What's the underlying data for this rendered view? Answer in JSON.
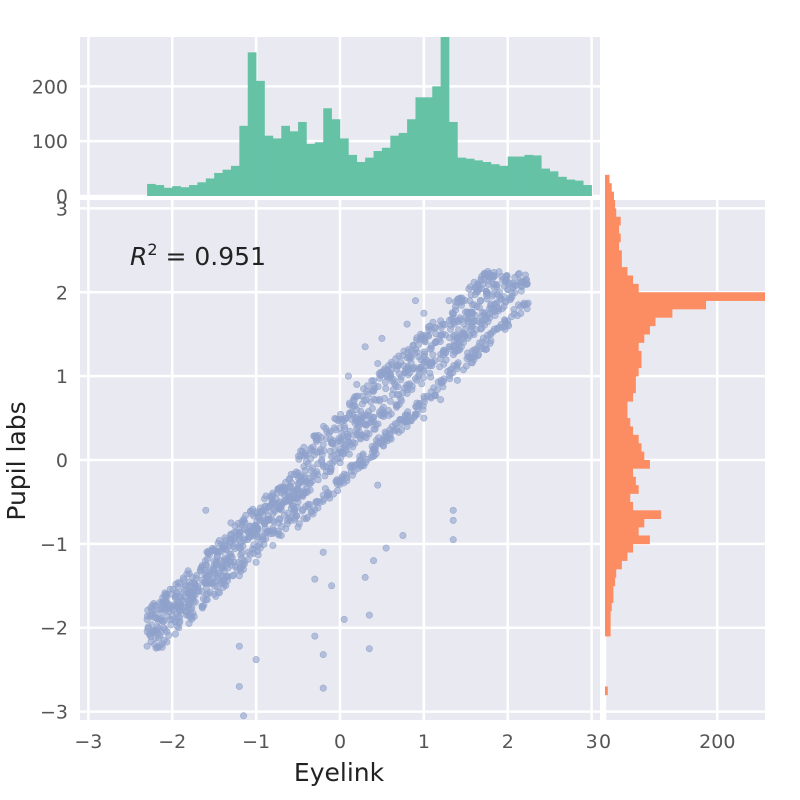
{
  "chart_data": {
    "type": "scatter",
    "title": "",
    "xlabel": "Eyelink",
    "ylabel": "Pupil labs",
    "xlim": [
      -3.1,
      3.1
    ],
    "ylim": [
      -3.1,
      3.1
    ],
    "xticks": [
      "−3",
      "−2",
      "−1",
      "0",
      "1",
      "2",
      "3"
    ],
    "yticks": [
      "−3",
      "−2",
      "−1",
      "0",
      "1",
      "2",
      "3"
    ],
    "grid": true,
    "annotation": {
      "prefix": "R",
      "sup": "2",
      "suffix": " = 0.951",
      "value": 0.951
    },
    "scatter": {
      "color": "#8fa1cb",
      "slope": 0.95,
      "intercept": 0.05,
      "points": [
        [
          -2.3,
          -2.22
        ],
        [
          -2.2,
          -2.12
        ],
        [
          -2.1,
          -2.0
        ],
        [
          -2.0,
          -1.9
        ],
        [
          -1.9,
          -1.8
        ],
        [
          -1.8,
          -1.68
        ],
        [
          -1.7,
          -1.56
        ],
        [
          -1.6,
          -1.47
        ],
        [
          -1.5,
          -1.36
        ],
        [
          -1.4,
          -1.26
        ],
        [
          -1.3,
          -1.15
        ],
        [
          -1.2,
          -1.05
        ],
        [
          -1.1,
          -0.95
        ],
        [
          -1.0,
          -0.86
        ],
        [
          -0.9,
          -0.75
        ],
        [
          -0.8,
          -0.64
        ],
        [
          -0.7,
          -0.55
        ],
        [
          -0.6,
          -0.44
        ],
        [
          -0.5,
          -0.35
        ],
        [
          -0.4,
          -0.26
        ],
        [
          -0.3,
          -0.16
        ],
        [
          -0.2,
          -0.06
        ],
        [
          -0.1,
          0.04
        ],
        [
          0.0,
          0.13
        ],
        [
          0.1,
          0.22
        ],
        [
          0.2,
          0.32
        ],
        [
          0.3,
          0.42
        ],
        [
          0.4,
          0.51
        ],
        [
          0.5,
          0.6
        ],
        [
          0.6,
          0.7
        ],
        [
          0.7,
          0.78
        ],
        [
          0.8,
          0.87
        ],
        [
          0.9,
          0.97
        ],
        [
          1.0,
          1.06
        ],
        [
          1.1,
          1.16
        ],
        [
          1.2,
          1.26
        ],
        [
          1.3,
          1.35
        ],
        [
          1.4,
          1.46
        ],
        [
          1.5,
          1.56
        ],
        [
          1.6,
          1.66
        ],
        [
          1.7,
          1.76
        ],
        [
          1.8,
          1.86
        ],
        [
          1.9,
          1.95
        ],
        [
          2.0,
          2.03
        ],
        [
          2.1,
          2.08
        ],
        [
          2.2,
          2.12
        ],
        [
          -2.0,
          -1.75
        ],
        [
          -1.8,
          -1.5
        ],
        [
          -1.6,
          -1.25
        ],
        [
          -1.4,
          -1.05
        ],
        [
          -1.2,
          -0.82
        ],
        [
          -1.0,
          -0.62
        ],
        [
          -0.8,
          -0.42
        ],
        [
          -0.6,
          -0.22
        ],
        [
          -0.4,
          -0.02
        ],
        [
          -0.2,
          0.18
        ],
        [
          0.0,
          0.38
        ],
        [
          0.2,
          0.6
        ],
        [
          0.4,
          0.82
        ],
        [
          0.6,
          1.02
        ],
        [
          0.8,
          1.22
        ],
        [
          1.0,
          1.44
        ],
        [
          1.2,
          1.66
        ],
        [
          1.4,
          1.88
        ],
        [
          1.6,
          2.12
        ],
        [
          1.8,
          2.2
        ],
        [
          -1.8,
          -1.95
        ],
        [
          -1.5,
          -1.6
        ],
        [
          -1.2,
          -1.38
        ],
        [
          -1.0,
          -1.22
        ],
        [
          -0.8,
          -1.02
        ],
        [
          -0.5,
          -0.8
        ],
        [
          -0.2,
          -0.42
        ],
        [
          0.0,
          -0.25
        ],
        [
          0.2,
          -0.05
        ],
        [
          0.4,
          0.12
        ],
        [
          0.6,
          0.3
        ],
        [
          0.8,
          0.4
        ],
        [
          1.0,
          0.5
        ],
        [
          1.2,
          0.72
        ],
        [
          1.4,
          0.95
        ],
        [
          1.6,
          1.2
        ],
        [
          1.8,
          1.42
        ],
        [
          2.0,
          1.62
        ],
        [
          2.2,
          1.85
        ],
        [
          0.3,
          1.35
        ],
        [
          0.5,
          1.45
        ],
        [
          0.8,
          1.62
        ],
        [
          1.0,
          1.75
        ],
        [
          0.2,
          0.9
        ],
        [
          0.1,
          1.0
        ],
        [
          0.45,
          1.15
        ],
        [
          0.9,
          1.9
        ],
        [
          1.5,
          1.7
        ],
        [
          1.3,
          1.9
        ],
        [
          -0.4,
          -0.7
        ],
        [
          0.55,
          -1.05
        ],
        [
          0.75,
          -0.9
        ],
        [
          0.3,
          -1.4
        ],
        [
          0.4,
          -1.2
        ],
        [
          -0.2,
          -1.1
        ],
        [
          -0.3,
          -1.42
        ],
        [
          -0.1,
          -1.5
        ],
        [
          0.35,
          -1.85
        ],
        [
          0.05,
          -1.9
        ],
        [
          -0.3,
          -2.1
        ],
        [
          0.35,
          -2.25
        ],
        [
          -0.2,
          -2.32
        ],
        [
          -1.0,
          -2.38
        ],
        [
          -1.2,
          -2.22
        ],
        [
          -1.2,
          -2.7
        ],
        [
          -0.2,
          -2.72
        ],
        [
          -1.15,
          -3.05
        ],
        [
          1.35,
          -0.6
        ],
        [
          1.35,
          -0.72
        ],
        [
          1.35,
          -0.95
        ],
        [
          0.45,
          -0.3
        ],
        [
          -1.6,
          -0.6
        ],
        [
          -1.45,
          -1.35
        ],
        [
          -1.75,
          -1.55
        ],
        [
          -0.95,
          -1.05
        ],
        [
          -0.7,
          -0.9
        ],
        [
          0.15,
          0.55
        ],
        [
          -0.5,
          -0.5
        ],
        [
          -1.3,
          -0.75
        ]
      ]
    },
    "top_histogram": {
      "color": "#66c2a5",
      "bin_edges_start": -2.3,
      "bin_width": 0.1,
      "counts": [
        22,
        20,
        15,
        18,
        16,
        20,
        25,
        32,
        42,
        48,
        55,
        128,
        262,
        210,
        110,
        105,
        128,
        118,
        135,
        95,
        98,
        160,
        140,
        105,
        75,
        62,
        70,
        82,
        88,
        110,
        115,
        140,
        180,
        180,
        200,
        290,
        135,
        70,
        68,
        65,
        62,
        58,
        55,
        72,
        72,
        75,
        74,
        50,
        45,
        35,
        30,
        28,
        20
      ],
      "ylim": [
        0,
        290
      ],
      "yticks": [
        "0",
        "100",
        "200"
      ]
    },
    "right_histogram": {
      "color": "#fc8d62",
      "bin_edges_start": -3.1,
      "bin_width": 0.1,
      "counts": [
        0,
        0,
        0,
        5,
        0,
        0,
        0,
        0,
        0,
        0,
        10,
        10,
        10,
        12,
        15,
        15,
        18,
        20,
        30,
        40,
        50,
        80,
        60,
        70,
        100,
        50,
        45,
        60,
        55,
        50,
        80,
        70,
        65,
        60,
        50,
        45,
        40,
        40,
        50,
        55,
        55,
        60,
        65,
        65,
        60,
        70,
        80,
        90,
        120,
        180,
        285,
        60,
        50,
        40,
        30,
        30,
        25,
        28,
        25,
        28,
        20,
        18,
        16,
        12,
        8
      ],
      "xlim": [
        0,
        285
      ],
      "xticks": [
        "0",
        "200"
      ]
    }
  }
}
